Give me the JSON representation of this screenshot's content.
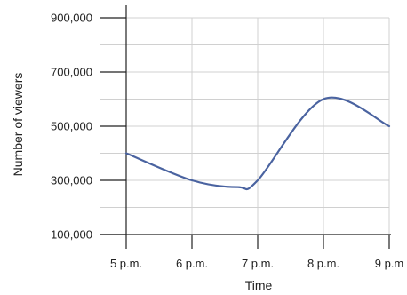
{
  "chart_data": {
    "type": "line",
    "title": "",
    "xlabel": "Time",
    "ylabel": "Number of viewers",
    "categories": [
      "5 p.m.",
      "6 p.m.",
      "7 p.m.",
      "8 p.m.",
      "9 p.m"
    ],
    "series": [
      {
        "values": [
          400000,
          300000,
          300000,
          600000,
          500000
        ],
        "color": "#4a63a0"
      }
    ],
    "curve_points": [
      {
        "x": 0,
        "y": 400000
      },
      {
        "x": 1,
        "y": 300000
      },
      {
        "x": 1.7,
        "y": 275000
      },
      {
        "x": 2,
        "y": 300000
      },
      {
        "x": 3,
        "y": 600000
      },
      {
        "x": 4,
        "y": 500000
      }
    ],
    "yticks": [
      100000,
      300000,
      500000,
      700000,
      900000
    ],
    "ytick_labels": [
      "100,000",
      "300,000",
      "500,000",
      "700,000",
      "900,000"
    ],
    "ylim": [
      100000,
      900000
    ],
    "grid": true,
    "colors": {
      "line": "#4a63a0",
      "grid": "#d0d0d0",
      "axis": "#222222"
    }
  }
}
